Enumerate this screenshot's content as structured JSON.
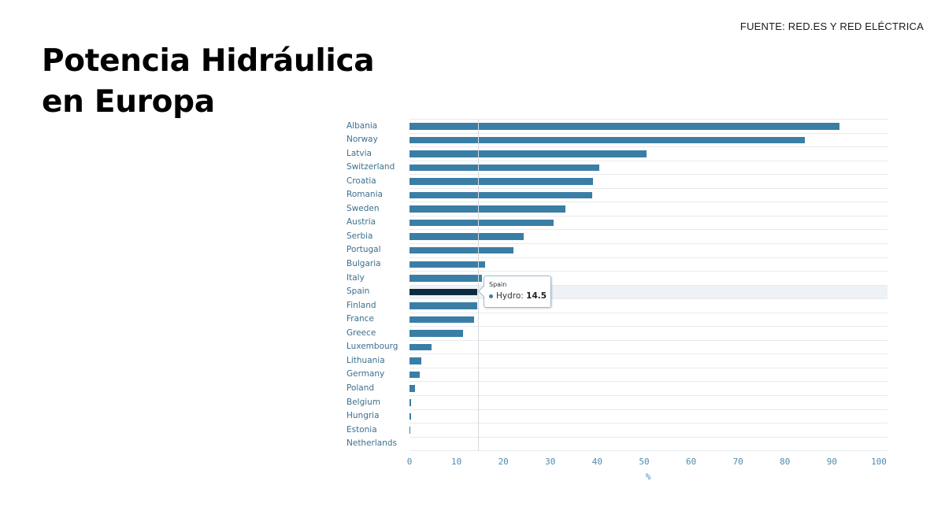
{
  "header": {
    "title": "Potencia Hidráulica\nen Europa",
    "source": "FUENTE: RED.ES Y RED ELÉCTRICA"
  },
  "tooltip": {
    "title": "Spain",
    "series_label": "Hydro:",
    "value": "14.5"
  },
  "colors": {
    "bar": "#3a7ea6",
    "bar_active": "#0d2b40",
    "axis_text": "#4e8bb1",
    "label_text": "#3d6f8e"
  },
  "chart_data": {
    "type": "bar",
    "orientation": "horizontal",
    "title": "Potencia Hidráulica en Europa",
    "subtitle": "FUENTE: RED.ES Y RED ELÉCTRICA",
    "xlabel": "%",
    "ylabel": "",
    "xlim": [
      0,
      100
    ],
    "xticks": [
      0,
      10,
      20,
      30,
      40,
      50,
      60,
      70,
      80,
      90,
      100
    ],
    "grid": true,
    "legend": null,
    "highlighted": "Spain",
    "series": [
      {
        "name": "Hydro",
        "values": [
          91.6,
          84.2,
          50.5,
          40.4,
          39.1,
          38.9,
          33.2,
          30.7,
          24.3,
          22.1,
          16.1,
          15.4,
          14.5,
          14.4,
          13.8,
          11.4,
          4.7,
          2.5,
          2.2,
          1.2,
          0.4,
          0.4,
          0.2,
          0.0
        ]
      }
    ],
    "categories": [
      "Albania",
      "Norway",
      "Latvia",
      "Switzerland",
      "Croatia",
      "Romania",
      "Sweden",
      "Austria",
      "Serbia",
      "Portugal",
      "Bulgaria",
      "Italy",
      "Spain",
      "Finland",
      "France",
      "Greece",
      "Luxembourg",
      "Lithuania",
      "Germany",
      "Poland",
      "Belgium",
      "Hungria",
      "Estonia",
      "Netherlands"
    ],
    "values": [
      91.6,
      84.2,
      50.5,
      40.4,
      39.1,
      38.9,
      33.2,
      30.7,
      24.3,
      22.1,
      16.1,
      15.4,
      14.5,
      14.4,
      13.8,
      11.4,
      4.7,
      2.5,
      2.2,
      1.2,
      0.4,
      0.4,
      0.2,
      0.0
    ]
  }
}
